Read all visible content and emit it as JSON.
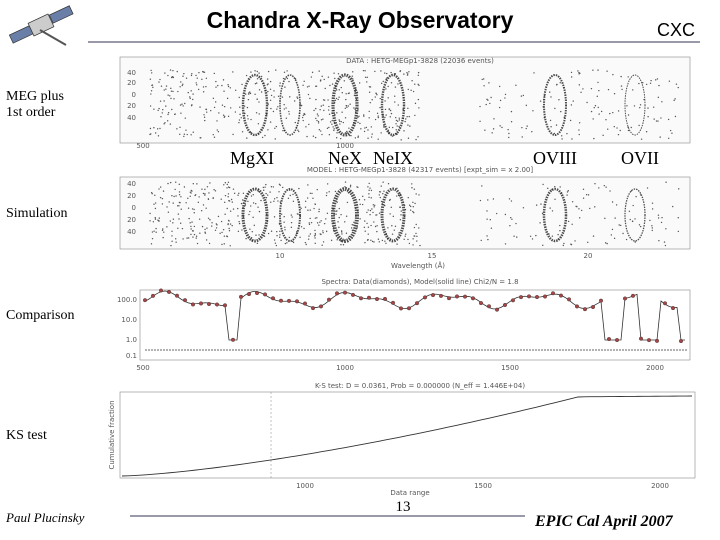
{
  "header": {
    "title": "Chandra X-Ray Observatory",
    "logo_text": "CXC"
  },
  "row_labels": [
    [
      "MEG plus",
      "1st order"
    ],
    [
      "Simulation"
    ],
    [
      "Comparison"
    ],
    [
      "KS test"
    ]
  ],
  "line_labels": [
    "MgXI",
    "NeX",
    "NeIX",
    "OVIII",
    "OVII"
  ],
  "panels": [
    {
      "title": "DATA : HETG-MEGp1-3828  (22036 events)",
      "yticks": [
        "40",
        "20",
        "0",
        "20",
        "40"
      ],
      "xticks": [
        "500",
        "1000"
      ]
    },
    {
      "title": "MODEL : HETG-MEGp1-3828  (42317 events)  [expt_sim = x 2.00]",
      "yticks": [
        "40",
        "20",
        "0",
        "20",
        "40"
      ],
      "xticks": [
        "10",
        "15",
        "20"
      ],
      "xlabel": "Wavelength (Å)"
    },
    {
      "title": "Spectra: Data(diamonds), Model(solid line)   Chi2/N = 1.8",
      "yticks": [
        "100.0",
        "10.0",
        "1.0",
        "0.1"
      ],
      "xticks": [
        "500",
        "1000",
        "1500",
        "2000"
      ]
    },
    {
      "title": "K-S test: D = 0.0361, Prob = 0.000000 (N_eff = 1.446E+04)",
      "ylabel": "Cumulative fraction",
      "xticks": [
        "1000",
        "1500",
        "2000"
      ],
      "xlabel": "Data range"
    }
  ],
  "footer": {
    "author": "Paul Plucinsky",
    "page": "13",
    "event": "EPIC Cal April 2007"
  }
}
